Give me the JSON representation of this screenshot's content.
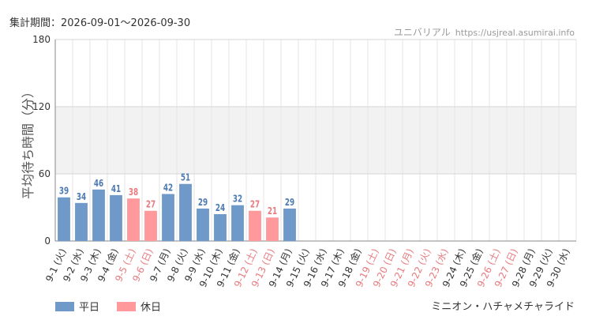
{
  "header": {
    "period": "集計期間：2026-09-01～2026-09-30",
    "site_name": "ユニバリアル",
    "site_url": "https://usjreal.asumirai.info"
  },
  "attraction": "ミニオン・ハチャメチャライド",
  "legend": [
    {
      "label": "平日",
      "color": "#6e99c8"
    },
    {
      "label": "休日",
      "color": "#ff999c"
    }
  ],
  "colors": {
    "weekday_bar": "#6e99c8",
    "holiday_bar": "#ff999c",
    "weekday_text": "#4d7ab0",
    "holiday_text": "#e87b7f",
    "band": "#f2f2f2",
    "grid": "#e6e6e6"
  },
  "chart_data": {
    "type": "bar",
    "ylabel": "平均待ち時間（分）",
    "ylim": [
      0,
      180
    ],
    "yticks": [
      0,
      60,
      120,
      180
    ],
    "bands": [
      [
        60,
        120
      ]
    ],
    "grid": true,
    "legend_position": "bottom-left",
    "categories": [
      "9-1 (火)",
      "9-2 (水)",
      "9-3 (木)",
      "9-4 (金)",
      "9-5 (土)",
      "9-6 (日)",
      "9-7 (月)",
      "9-8 (火)",
      "9-9 (水)",
      "9-10 (木)",
      "9-11 (金)",
      "9-12 (土)",
      "9-13 (日)",
      "9-14 (月)",
      "9-15 (火)",
      "9-16 (水)",
      "9-17 (木)",
      "9-18 (金)",
      "9-19 (土)",
      "9-20 (日)",
      "9-21 (月)",
      "9-22 (火)",
      "9-23 (水)",
      "9-24 (木)",
      "9-25 (金)",
      "9-26 (土)",
      "9-27 (日)",
      "9-28 (月)",
      "9-29 (火)",
      "9-30 (水)"
    ],
    "day_type": [
      "平日",
      "平日",
      "平日",
      "平日",
      "休日",
      "休日",
      "平日",
      "平日",
      "平日",
      "平日",
      "平日",
      "休日",
      "休日",
      "平日",
      "平日",
      "平日",
      "平日",
      "平日",
      "休日",
      "休日",
      "休日",
      "休日",
      "休日",
      "平日",
      "平日",
      "休日",
      "休日",
      "平日",
      "平日",
      "平日"
    ],
    "values": [
      39,
      34,
      46,
      41,
      38,
      27,
      42,
      51,
      29,
      24,
      32,
      27,
      21,
      29,
      null,
      null,
      null,
      null,
      null,
      null,
      null,
      null,
      null,
      null,
      null,
      null,
      null,
      null,
      null,
      null
    ]
  }
}
